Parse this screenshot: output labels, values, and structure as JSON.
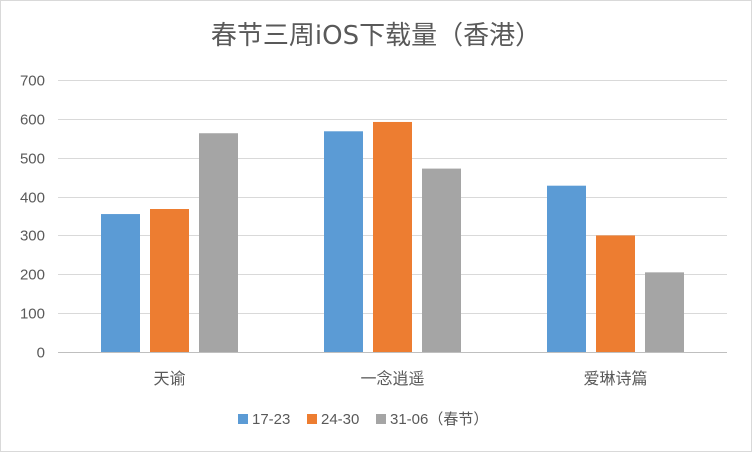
{
  "chart_data": {
    "type": "bar",
    "title": "春节三周iOS下载量（香港）",
    "categories": [
      "天谕",
      "一念逍遥",
      "爱琳诗篇"
    ],
    "series": [
      {
        "name": "17-23",
        "color": "#5b9bd5",
        "values": [
          355,
          568,
          428
        ]
      },
      {
        "name": "24-30",
        "color": "#ed7d31",
        "values": [
          368,
          592,
          300
        ]
      },
      {
        "name": "31-06（春节）",
        "color": "#a5a5a5",
        "values": [
          563,
          472,
          205
        ]
      }
    ],
    "yticks": [
      "0",
      "100",
      "200",
      "300",
      "400",
      "500",
      "600",
      "700"
    ],
    "ylim": [
      0,
      700
    ],
    "grid": true,
    "legend_position": "bottom"
  }
}
